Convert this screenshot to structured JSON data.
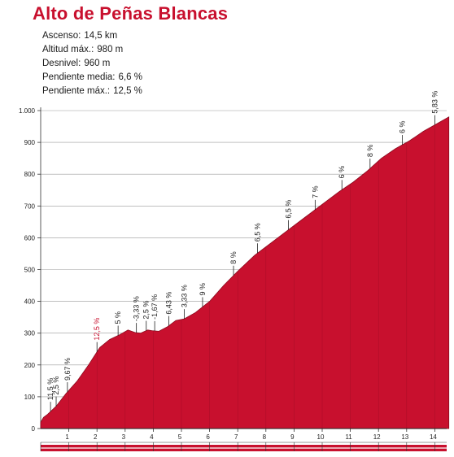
{
  "header": {
    "title": "Alto de Peñas Blancas",
    "stats": [
      {
        "label": "Ascenso:",
        "value": "14,5 km"
      },
      {
        "label": "Altitud máx.:",
        "value": "980 m"
      },
      {
        "label": "Desnivel:",
        "value": "960 m"
      },
      {
        "label": "Pendiente media:",
        "value": "6,6 %"
      },
      {
        "label": "Pendiente máx.:",
        "value": "12,5 %"
      }
    ]
  },
  "colors": {
    "profile_fill": "#c8102e",
    "profile_edge": "#8a0a1e",
    "highlight_label": "#c8102e",
    "grid": "#9a9a9a"
  },
  "chart_data": {
    "type": "area",
    "title": "Alto de Peñas Blancas",
    "xlabel": "",
    "ylabel": "",
    "xlim": [
      0,
      14.5
    ],
    "ylim": [
      0,
      1000
    ],
    "grid": true,
    "y_ticks": [
      {
        "value": 0,
        "label": "0"
      },
      {
        "value": 100,
        "label": "100"
      },
      {
        "value": 200,
        "label": "200"
      },
      {
        "value": 300,
        "label": "300"
      },
      {
        "value": 400,
        "label": "400"
      },
      {
        "value": 500,
        "label": "500"
      },
      {
        "value": 600,
        "label": "600"
      },
      {
        "value": 700,
        "label": "700"
      },
      {
        "value": 800,
        "label": "800"
      },
      {
        "value": 900,
        "label": "900"
      },
      {
        "value": 1000,
        "label": "1.000"
      }
    ],
    "x_ticks": [
      {
        "value": 1,
        "label": "1"
      },
      {
        "value": 2,
        "label": "2"
      },
      {
        "value": 3,
        "label": "3"
      },
      {
        "value": 4,
        "label": "4"
      },
      {
        "value": 5,
        "label": "5"
      },
      {
        "value": 6,
        "label": "6"
      },
      {
        "value": 7,
        "label": "7"
      },
      {
        "value": 8,
        "label": "8"
      },
      {
        "value": 9,
        "label": "9"
      },
      {
        "value": 10,
        "label": "10"
      },
      {
        "value": 11,
        "label": "11"
      },
      {
        "value": 12,
        "label": "12"
      },
      {
        "value": 13,
        "label": "13"
      },
      {
        "value": 14,
        "label": "14"
      }
    ],
    "x": [
      0,
      0.1,
      0.25,
      0.55,
      0.9,
      1.3,
      1.7,
      2.1,
      2.45,
      2.8,
      3.1,
      3.35,
      3.55,
      3.8,
      3.95,
      4.2,
      4.5,
      4.8,
      5.1,
      5.5,
      6.0,
      6.5,
      7.0,
      7.6,
      8.2,
      8.8,
      9.4,
      10.0,
      10.6,
      11.1,
      11.6,
      12.1,
      12.6,
      13.1,
      13.6,
      14.0,
      14.5
    ],
    "y": [
      20,
      35,
      45,
      70,
      110,
      150,
      200,
      255,
      280,
      295,
      310,
      302,
      300,
      310,
      308,
      306,
      320,
      340,
      345,
      365,
      400,
      450,
      495,
      545,
      585,
      625,
      665,
      705,
      745,
      775,
      810,
      850,
      880,
      905,
      935,
      955,
      980
    ],
    "gradients": [
      {
        "km": 0.35,
        "label": "11,5 %",
        "highlight": false
      },
      {
        "km": 0.55,
        "label": "2,5 %",
        "highlight": false
      },
      {
        "km": 0.95,
        "label": "9,67 %",
        "highlight": false
      },
      {
        "km": 2.0,
        "label": "12,5 %",
        "highlight": true
      },
      {
        "km": 2.75,
        "label": "5 %",
        "highlight": false
      },
      {
        "km": 3.4,
        "label": "-3,33 %",
        "highlight": false
      },
      {
        "km": 3.75,
        "label": "2,5 %",
        "highlight": false
      },
      {
        "km": 4.05,
        "label": "-1,67 %",
        "highlight": false
      },
      {
        "km": 4.55,
        "label": "6,43 %",
        "highlight": false
      },
      {
        "km": 5.1,
        "label": "3,33 %",
        "highlight": false
      },
      {
        "km": 5.75,
        "label": "9 %",
        "highlight": false
      },
      {
        "km": 6.85,
        "label": "8 %",
        "highlight": false
      },
      {
        "km": 7.7,
        "label": "6,5 %",
        "highlight": false
      },
      {
        "km": 8.8,
        "label": "6,5 %",
        "highlight": false
      },
      {
        "km": 9.75,
        "label": "7 %",
        "highlight": false
      },
      {
        "km": 10.7,
        "label": "6 %",
        "highlight": false
      },
      {
        "km": 11.7,
        "label": "8 %",
        "highlight": false
      },
      {
        "km": 12.85,
        "label": "6 %",
        "highlight": false
      },
      {
        "km": 14.0,
        "label": "5,83 %",
        "highlight": false
      }
    ]
  }
}
